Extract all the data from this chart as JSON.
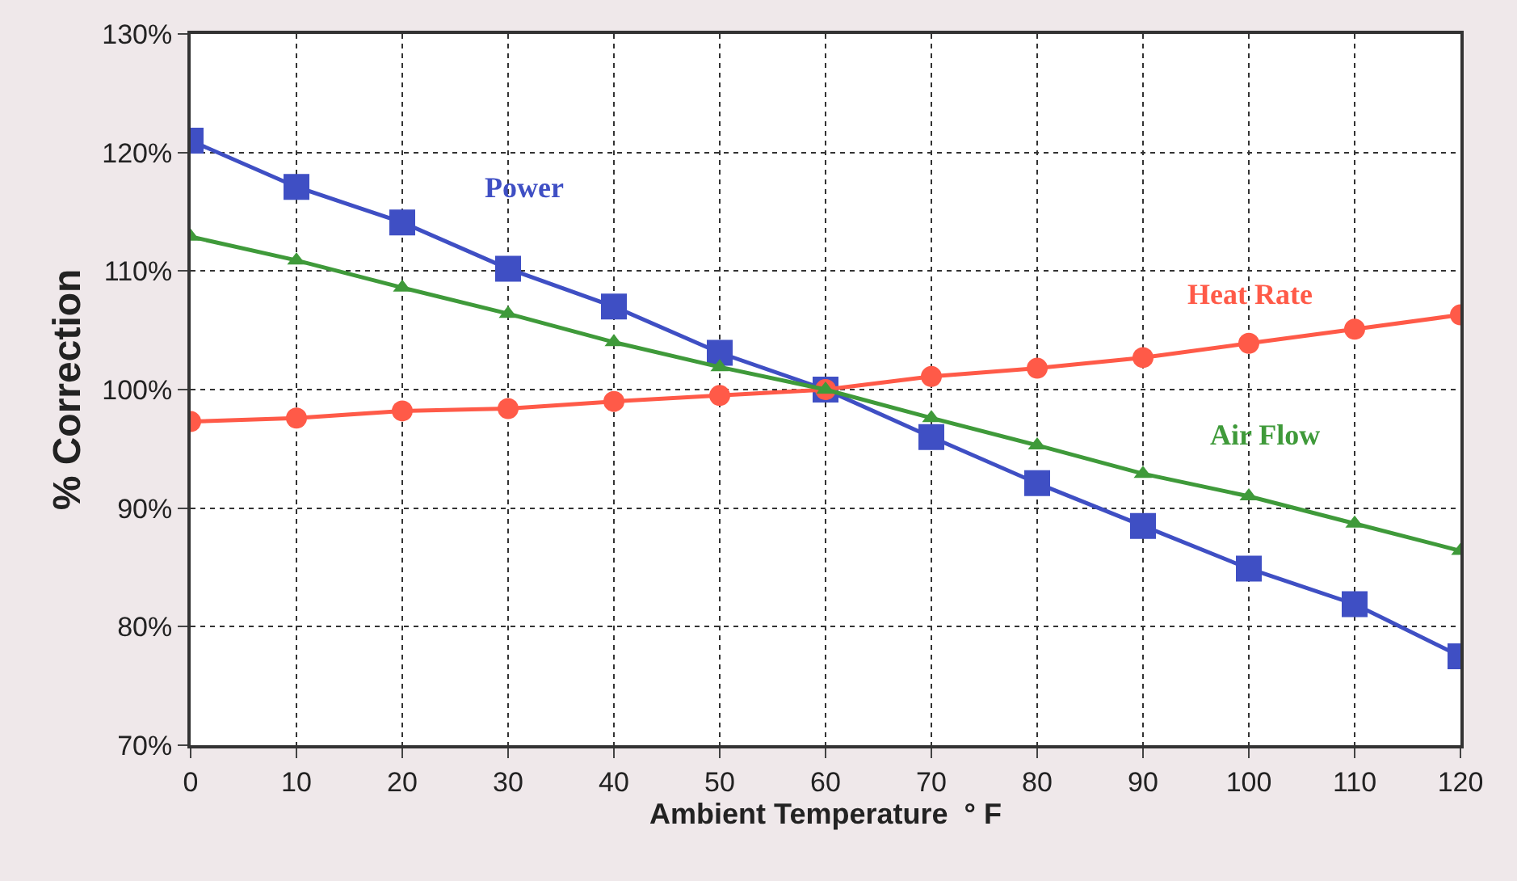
{
  "chart_data": {
    "type": "line",
    "xlabel": "Ambient Temperature  ° F",
    "ylabel": "% Correction",
    "x": [
      0,
      10,
      20,
      30,
      40,
      50,
      60,
      70,
      80,
      90,
      100,
      110,
      120
    ],
    "series": [
      {
        "name": "Power",
        "color": "#3f4fc4",
        "marker": "square",
        "values": [
          121.0,
          117.1,
          114.1,
          110.2,
          107.0,
          103.1,
          100,
          96.0,
          92.1,
          88.5,
          84.9,
          81.9,
          77.5
        ]
      },
      {
        "name": "Heat Rate",
        "color": "#ff5a48",
        "marker": "circle",
        "values": [
          97.3,
          97.6,
          98.2,
          98.4,
          99.0,
          99.5,
          100,
          101.1,
          101.8,
          102.7,
          103.9,
          105.1,
          106.3
        ]
      },
      {
        "name": "Air Flow",
        "color": "#3f9a3a",
        "marker": "triangle",
        "values": [
          112.9,
          110.9,
          108.6,
          106.4,
          104.0,
          101.9,
          100,
          97.6,
          95.3,
          92.9,
          91.0,
          88.7,
          86.4
        ]
      }
    ],
    "xlim": [
      0,
      120
    ],
    "xticks": [
      0,
      10,
      20,
      30,
      40,
      50,
      60,
      70,
      80,
      90,
      100,
      110,
      120
    ],
    "ylim": [
      70,
      130
    ],
    "yticks": [
      {
        "value": 70,
        "label": "70%"
      },
      {
        "value": 80,
        "label": "80%"
      },
      {
        "value": 90,
        "label": "90%"
      },
      {
        "value": 100,
        "label": "100%"
      },
      {
        "value": 110,
        "label": "110%"
      },
      {
        "value": 120,
        "label": "120%"
      },
      {
        "value": 130,
        "label": "130%"
      }
    ],
    "grid": true,
    "legend": false,
    "line_style": "solid"
  }
}
